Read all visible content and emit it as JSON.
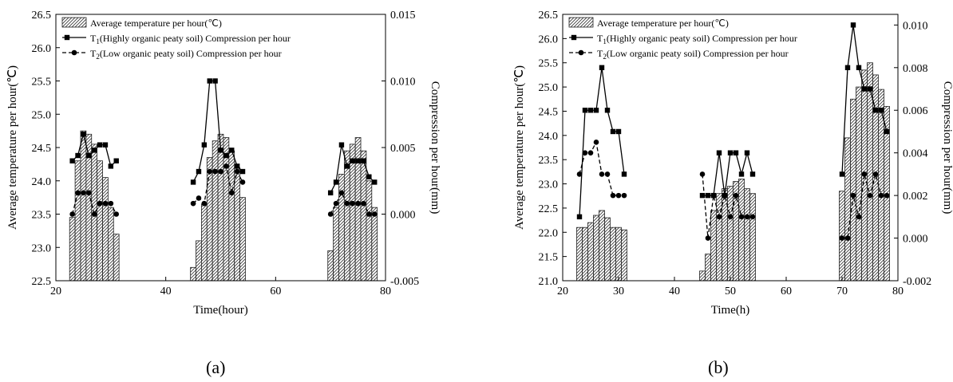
{
  "chart_data": [
    {
      "type": "bar+line",
      "caption": "(a)",
      "xlabel": "Time(hour)",
      "ylabel_left": "Average temperature per hour(℃)",
      "ylabel_right": "Compression per hour(mm)",
      "xlim": [
        20,
        80
      ],
      "ylim_left": [
        22.5,
        26.5
      ],
      "ylim_right": [
        -0.005,
        0.015
      ],
      "xticks": [
        "20",
        "40",
        "60",
        "80"
      ],
      "yticks_left": [
        "22.5",
        "23.0",
        "23.5",
        "24.0",
        "24.5",
        "25.0",
        "25.5",
        "26.0",
        "26.5"
      ],
      "yticks_right": [
        "-0.005",
        "0.000",
        "0.005",
        "0.010",
        "0.015"
      ],
      "legend": {
        "bar": "Average temperature per hour(℃)",
        "t1_pre": "T",
        "t1_sub": "1",
        "t1_post": "(Highly organic peaty soil) Compression per hour",
        "t2_pre": "T",
        "t2_sub": "2",
        "t2_post": "(Low organic peaty soil) Compression per hour"
      },
      "temperature": {
        "x": [
          23,
          24,
          25,
          26,
          27,
          28,
          29,
          30,
          31,
          45,
          46,
          47,
          48,
          49,
          50,
          51,
          52,
          53,
          54,
          70,
          71,
          72,
          73,
          74,
          75,
          76,
          77,
          78
        ],
        "y": [
          23.45,
          24.3,
          24.75,
          24.7,
          24.55,
          24.3,
          24.05,
          23.6,
          23.2,
          22.7,
          23.1,
          23.65,
          24.35,
          24.6,
          24.7,
          24.65,
          24.45,
          24.2,
          23.75,
          22.95,
          23.6,
          24.1,
          24.45,
          24.55,
          24.65,
          24.45,
          24.0,
          23.6
        ]
      },
      "series_t1": {
        "x": [
          23,
          24,
          25,
          26,
          27,
          28,
          29,
          30,
          31,
          45,
          46,
          47,
          48,
          49,
          50,
          51,
          52,
          53,
          54,
          70,
          71,
          72,
          73,
          74,
          75,
          76,
          77,
          78
        ],
        "y": [
          0.004,
          0.0044,
          0.006,
          0.0044,
          0.0048,
          0.0052,
          0.0052,
          0.0036,
          0.004,
          0.0024,
          0.0032,
          0.0052,
          0.01,
          0.01,
          0.0048,
          0.0044,
          0.0048,
          0.0036,
          0.0032,
          0.0016,
          0.0024,
          0.0052,
          0.0036,
          0.004,
          0.004,
          0.004,
          0.0028,
          0.0024
        ]
      },
      "series_t2": {
        "x": [
          23,
          24,
          25,
          26,
          27,
          28,
          29,
          30,
          31,
          45,
          46,
          47,
          48,
          49,
          50,
          51,
          52,
          53,
          54,
          70,
          71,
          72,
          73,
          74,
          75,
          76,
          77,
          78
        ],
        "y": [
          0.0,
          0.0016,
          0.0016,
          0.0016,
          0.0,
          0.0008,
          0.0008,
          0.0008,
          0.0,
          0.0008,
          0.0012,
          0.0008,
          0.0032,
          0.0032,
          0.0032,
          0.0036,
          0.0016,
          0.0032,
          0.0024,
          0.0,
          0.0008,
          0.0016,
          0.0008,
          0.0008,
          0.0008,
          0.0008,
          0.0,
          0.0
        ]
      }
    },
    {
      "type": "bar+line",
      "caption": "(b)",
      "xlabel": "Time(h)",
      "ylabel_left": "Average temperature per hour(℃)",
      "ylabel_right": "Compression per hour(mm)",
      "xlim": [
        20,
        80
      ],
      "ylim_left": [
        21.0,
        26.5
      ],
      "ylim_right": [
        -0.002,
        0.0105
      ],
      "xticks": [
        "20",
        "30",
        "40",
        "50",
        "60",
        "70",
        "80"
      ],
      "yticks_left": [
        "21.0",
        "21.5",
        "22.0",
        "22.5",
        "23.0",
        "23.5",
        "24.0",
        "24.5",
        "25.0",
        "25.5",
        "26.0",
        "26.5"
      ],
      "yticks_right": [
        "-0.002",
        "0.000",
        "0.002",
        "0.004",
        "0.006",
        "0.008",
        "0.010"
      ],
      "legend": {
        "bar": "Average temperature per hour(℃)",
        "t1_pre": "T",
        "t1_sub": "1",
        "t1_post": "(Highly organic peaty soil) Compression per hour",
        "t2_pre": "T",
        "t2_sub": "2",
        "t2_post": "(Low organic peaty soil) Compression per hour"
      },
      "temperature": {
        "x": [
          23,
          24,
          25,
          26,
          27,
          28,
          29,
          30,
          31,
          45,
          46,
          47,
          48,
          49,
          50,
          51,
          52,
          53,
          54,
          70,
          71,
          72,
          73,
          74,
          75,
          76,
          77,
          78
        ],
        "y": [
          22.1,
          22.1,
          22.2,
          22.35,
          22.45,
          22.3,
          22.1,
          22.1,
          22.05,
          21.2,
          21.55,
          22.45,
          22.8,
          22.9,
          22.95,
          23.05,
          23.1,
          22.9,
          22.8,
          22.85,
          23.95,
          24.75,
          25.0,
          25.35,
          25.5,
          25.25,
          24.95,
          24.6
        ]
      },
      "series_t1": {
        "x": [
          23,
          24,
          25,
          26,
          27,
          28,
          29,
          30,
          31,
          45,
          46,
          47,
          48,
          49,
          50,
          51,
          52,
          53,
          54,
          70,
          71,
          72,
          73,
          74,
          75,
          76,
          77,
          78
        ],
        "y": [
          0.001,
          0.006,
          0.006,
          0.006,
          0.008,
          0.006,
          0.005,
          0.005,
          0.003,
          0.002,
          0.002,
          0.002,
          0.004,
          0.002,
          0.004,
          0.004,
          0.003,
          0.004,
          0.003,
          0.003,
          0.008,
          0.01,
          0.008,
          0.007,
          0.007,
          0.006,
          0.006,
          0.005
        ]
      },
      "series_t2": {
        "x": [
          23,
          24,
          25,
          26,
          27,
          28,
          29,
          30,
          31,
          45,
          46,
          47,
          48,
          49,
          50,
          51,
          52,
          53,
          54,
          70,
          71,
          72,
          73,
          74,
          75,
          76,
          77,
          78
        ],
        "y": [
          0.003,
          0.004,
          0.004,
          0.0045,
          0.003,
          0.003,
          0.002,
          0.002,
          0.002,
          0.003,
          0.0,
          0.002,
          0.001,
          0.002,
          0.001,
          0.002,
          0.001,
          0.001,
          0.001,
          0.0,
          0.0,
          0.002,
          0.001,
          0.003,
          0.002,
          0.003,
          0.002,
          0.002
        ]
      }
    }
  ]
}
